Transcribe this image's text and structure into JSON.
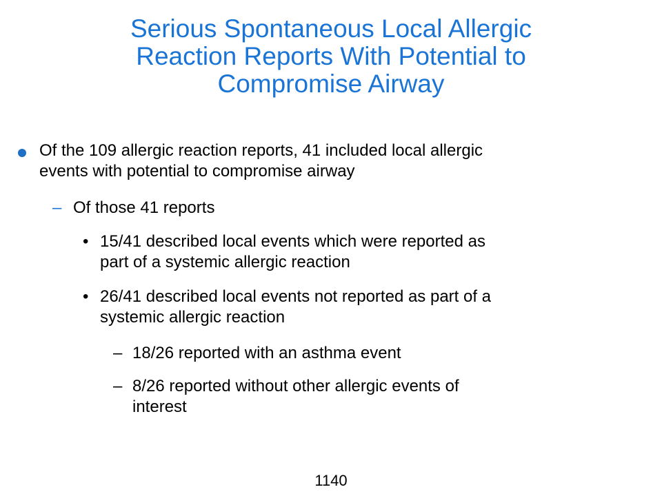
{
  "slide": {
    "title_lines": [
      "Serious Spontaneous Local Allergic",
      "Reaction Reports With Potential to",
      "Compromise Airway"
    ],
    "bullets": {
      "level1": {
        "lines": [
          "Of the 109 allergic reaction reports, 41 included local allergic",
          "events with potential to compromise airway"
        ]
      },
      "level2": {
        "marker": "–",
        "text": "Of those 41 reports"
      },
      "level3": [
        {
          "marker": "•",
          "lines": [
            "15/41 described local events which were reported as",
            "part of a systemic allergic reaction"
          ]
        },
        {
          "marker": "•",
          "lines": [
            "26/41 described local events not reported as part of a",
            "systemic allergic reaction"
          ]
        }
      ],
      "level4": [
        {
          "marker": "–",
          "lines": [
            "18/26 reported with an asthma event"
          ]
        },
        {
          "marker": "–",
          "lines": [
            "8/26 reported without other allergic events of",
            "interest"
          ]
        }
      ]
    },
    "page_number": "1140",
    "colors": {
      "title": "#1a74d6",
      "bullet_dot": "#1f6fc4",
      "text": "#000000"
    }
  }
}
